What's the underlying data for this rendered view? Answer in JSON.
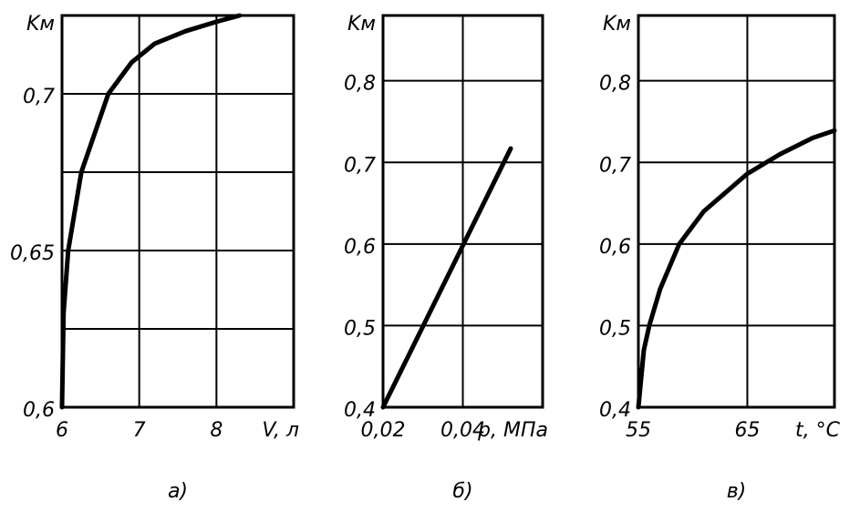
{
  "chart_data": [
    {
      "type": "line",
      "y_label": "Kм",
      "x_label": "V, л",
      "caption": "а)",
      "x": [
        6,
        6.02,
        6.08,
        6.25,
        6.6,
        6.9,
        7.2,
        7.6,
        8,
        8.3
      ],
      "values": [
        0.6,
        0.63,
        0.65,
        0.675,
        0.7,
        0.71,
        0.716,
        0.72,
        0.723,
        0.725
      ],
      "color": "#000000",
      "xlim": [
        6,
        9
      ],
      "ylim": [
        0.6,
        0.725
      ],
      "xticks": [
        6,
        7,
        8
      ],
      "yticks": [
        {
          "value": 0.6,
          "label": "0,6"
        },
        {
          "value": 0.65,
          "label": "0,65"
        },
        {
          "value": 0.7,
          "label": "0,7"
        }
      ],
      "xgrid": [
        7,
        8
      ],
      "ygrid": [
        0.625,
        0.65,
        0.675,
        0.7
      ]
    },
    {
      "type": "line",
      "y_label": "Kм",
      "x_label": "p, МПа",
      "caption": "б)",
      "x": [
        0.02,
        0.052
      ],
      "values": [
        0.4,
        0.717
      ],
      "color": "#000000",
      "xlim": [
        0.02,
        0.06
      ],
      "ylim": [
        0.4,
        0.88
      ],
      "xticks": [
        {
          "value": 0.02,
          "label": "0,02"
        },
        {
          "value": 0.04,
          "label": "0,04"
        }
      ],
      "yticks": [
        {
          "value": 0.4,
          "label": "0,4"
        },
        {
          "value": 0.5,
          "label": "0,5"
        },
        {
          "value": 0.6,
          "label": "0,6"
        },
        {
          "value": 0.7,
          "label": "0,7"
        },
        {
          "value": 0.8,
          "label": "0,8"
        }
      ],
      "xgrid": [
        0.04
      ],
      "ygrid": [
        0.5,
        0.6,
        0.7,
        0.8
      ]
    },
    {
      "type": "line",
      "y_label": "Kм",
      "x_label": "t, °C",
      "caption": "в)",
      "x": [
        55,
        55.5,
        56,
        57,
        58.75,
        61,
        65,
        68,
        71,
        73
      ],
      "values": [
        0.4,
        0.47,
        0.5,
        0.545,
        0.6,
        0.64,
        0.686,
        0.71,
        0.73,
        0.739
      ],
      "color": "#000000",
      "xlim": [
        55,
        73
      ],
      "ylim": [
        0.4,
        0.88
      ],
      "xticks": [
        55,
        65
      ],
      "yticks": [
        {
          "value": 0.4,
          "label": "0,4"
        },
        {
          "value": 0.5,
          "label": "0,5"
        },
        {
          "value": 0.6,
          "label": "0,6"
        },
        {
          "value": 0.7,
          "label": "0,7"
        },
        {
          "value": 0.8,
          "label": "0,8"
        }
      ],
      "xgrid": [
        65
      ],
      "ygrid": [
        0.5,
        0.6,
        0.7,
        0.8
      ]
    }
  ]
}
